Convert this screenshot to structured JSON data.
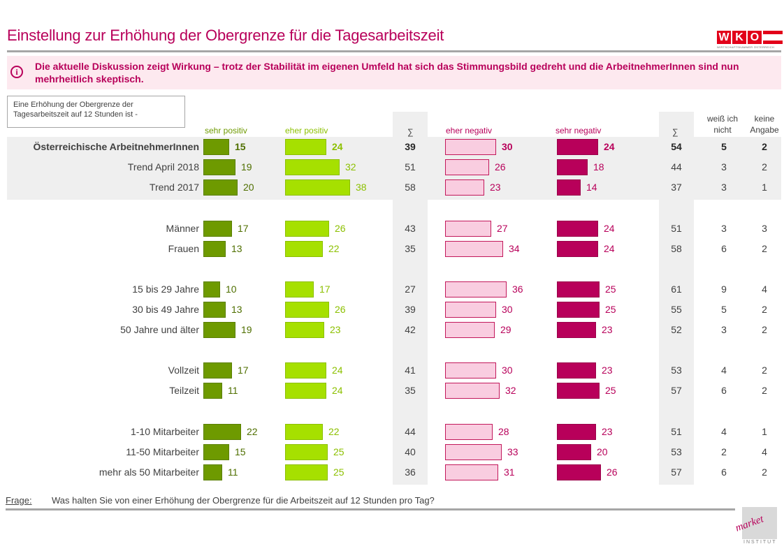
{
  "header": {
    "title": "Einstellung zur Erhöhung der Obergrenze für die Tagesarbeitszeit",
    "logo_text": "WKO",
    "logo_subtext": "WIRTSCHAFTSKAMMER ÖSTERREICH"
  },
  "info": {
    "icon": "info-icon",
    "text": "Die aktuelle Diskussion zeigt Wirkung – trotz der Stabilität im eigenen Umfeld hat sich das Stimmungsbild gedreht und die ArbeitnehmerInnen sind nun mehrheitlich skeptisch."
  },
  "question_box": "Eine Erhöhung der Obergrenze der Tagesarbeitszeit auf 12 Stunden ist -",
  "columns": {
    "sehr_positiv": "sehr positiv",
    "eher_positiv": "eher positiv",
    "sum_pos": "∑",
    "eher_negativ": "eher negativ",
    "sehr_negativ": "sehr negativ",
    "sum_neg": "∑",
    "weiss_nicht": "weiß ich nicht",
    "keine_angabe": "keine Angabe"
  },
  "colors": {
    "sehr_positiv": "#6e9a00",
    "eher_positiv": "#a6e000",
    "eher_negativ": "#f9cde0",
    "sehr_negativ": "#b8005a",
    "accent": "#b8005a"
  },
  "chart_data": {
    "type": "bar",
    "orientation": "horizontal",
    "title": "Einstellung zur Erhöhung der Obergrenze für die Tagesarbeitszeit",
    "categories": [
      "Österreichische ArbeitnehmerInnen",
      "Trend April 2018",
      "Trend 2017",
      "Männer",
      "Frauen",
      "15 bis 29 Jahre",
      "30 bis 49 Jahre",
      "50 Jahre und älter",
      "Vollzeit",
      "Teilzeit",
      "1-10 Mitarbeiter",
      "11-50 Mitarbeiter",
      "mehr als 50 Mitarbeiter"
    ],
    "series": [
      {
        "name": "sehr positiv",
        "values": [
          15,
          19,
          20,
          17,
          13,
          10,
          13,
          19,
          17,
          11,
          22,
          15,
          11
        ]
      },
      {
        "name": "eher positiv",
        "values": [
          24,
          32,
          38,
          26,
          22,
          17,
          26,
          23,
          24,
          24,
          22,
          25,
          25
        ]
      },
      {
        "name": "∑ positiv",
        "values": [
          39,
          51,
          58,
          43,
          35,
          27,
          39,
          42,
          41,
          35,
          44,
          40,
          36
        ]
      },
      {
        "name": "eher negativ",
        "values": [
          30,
          26,
          23,
          27,
          34,
          36,
          30,
          29,
          30,
          32,
          28,
          33,
          31
        ]
      },
      {
        "name": "sehr negativ",
        "values": [
          24,
          18,
          14,
          24,
          24,
          25,
          25,
          23,
          23,
          25,
          23,
          20,
          26
        ]
      },
      {
        "name": "∑ negativ",
        "values": [
          54,
          44,
          37,
          51,
          58,
          61,
          55,
          52,
          53,
          57,
          51,
          53,
          57
        ]
      },
      {
        "name": "weiß ich nicht",
        "values": [
          5,
          3,
          3,
          3,
          6,
          9,
          5,
          3,
          4,
          6,
          4,
          2,
          6
        ]
      },
      {
        "name": "keine Angabe",
        "values": [
          2,
          2,
          1,
          3,
          2,
          4,
          2,
          2,
          2,
          2,
          1,
          4,
          2
        ]
      }
    ],
    "bold_rows": [
      0
    ]
  },
  "footer": {
    "frage_label": "Frage:",
    "frage_text": "Was halten Sie von einer Erhöhung der Obergrenze für die Arbeitszeit auf 12 Stunden pro Tag?",
    "institute_word": "market",
    "institute_sub": "INSTITUT"
  }
}
